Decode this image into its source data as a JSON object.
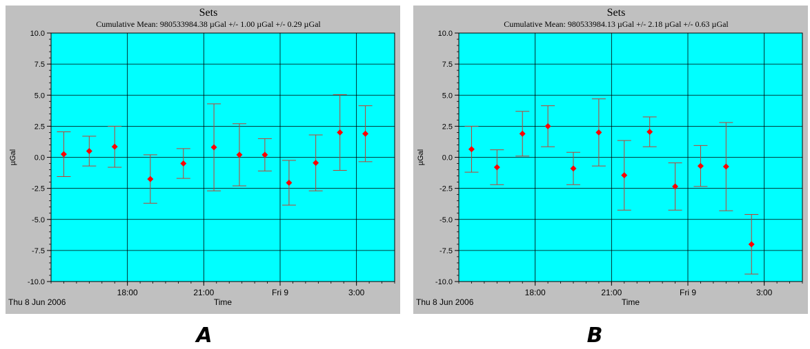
{
  "colors": {
    "frame": "#c0c0c0",
    "plot_bg": "#00ffff",
    "grid": "#000000",
    "marker": "#ff0000",
    "errorbar": "#c04030"
  },
  "chart_data": [
    {
      "type": "scatter",
      "panel_label": "A",
      "title": "Sets",
      "subtitle": "Cumulative Mean:  980533984.38 µGal   +/- 1.00 µGal   +/-  0.29 µGal",
      "xlabel": "Time",
      "ylabel": "µGal",
      "date_label": "Thu 8 Jun 2006",
      "xlim": [
        15.0,
        28.5
      ],
      "ylim": [
        -10,
        10
      ],
      "yticks": [
        "10.0",
        "7.5",
        "5.0",
        "2.5",
        "0.0",
        "-2.5",
        "-5.0",
        "-7.5",
        "-10.0"
      ],
      "xticks": [
        {
          "x": 18,
          "label": "18:00"
        },
        {
          "x": 21,
          "label": "21:00"
        },
        {
          "x": 24,
          "label": "Fri 9"
        },
        {
          "x": 27,
          "label": "3:00"
        }
      ],
      "grid": true,
      "series": [
        {
          "points": [
            {
              "x": 15.5,
              "y": 0.25,
              "err": 1.8
            },
            {
              "x": 16.5,
              "y": 0.5,
              "err": 1.2
            },
            {
              "x": 17.5,
              "y": 0.85,
              "err": 1.65
            },
            {
              "x": 18.9,
              "y": -1.75,
              "err": 1.95
            },
            {
              "x": 20.2,
              "y": -0.5,
              "err": 1.2
            },
            {
              "x": 21.4,
              "y": 0.8,
              "err": 3.5
            },
            {
              "x": 22.4,
              "y": 0.2,
              "err": 2.5
            },
            {
              "x": 23.4,
              "y": 0.2,
              "err": 1.3
            },
            {
              "x": 24.35,
              "y": -2.05,
              "err": 1.8
            },
            {
              "x": 25.4,
              "y": -0.45,
              "err": 2.25
            },
            {
              "x": 26.35,
              "y": 2.0,
              "err": 3.05
            },
            {
              "x": 27.35,
              "y": 1.9,
              "err": 2.25
            }
          ]
        }
      ]
    },
    {
      "type": "scatter",
      "panel_label": "B",
      "title": "Sets",
      "subtitle": "Cumulative Mean:  980533984.13 µGal   +/- 2.18 µGal   +/-  0.63 µGal",
      "xlabel": "Time",
      "ylabel": "µGal",
      "date_label": "Thu 8 Jun 2006",
      "xlim": [
        15.0,
        28.5
      ],
      "ylim": [
        -10,
        10
      ],
      "yticks": [
        "10.0",
        "7.5",
        "5.0",
        "2.5",
        "0.0",
        "-2.5",
        "-5.0",
        "-7.5",
        "-10.0"
      ],
      "xticks": [
        {
          "x": 18,
          "label": "18:00"
        },
        {
          "x": 21,
          "label": "21:00"
        },
        {
          "x": 24,
          "label": "Fri 9"
        },
        {
          "x": 27,
          "label": "3:00"
        }
      ],
      "grid": true,
      "series": [
        {
          "points": [
            {
              "x": 15.5,
              "y": 0.65,
              "err": 1.85
            },
            {
              "x": 16.5,
              "y": -0.8,
              "err": 1.4
            },
            {
              "x": 17.5,
              "y": 1.9,
              "err": 1.8
            },
            {
              "x": 18.5,
              "y": 2.5,
              "err": 1.65
            },
            {
              "x": 19.5,
              "y": -0.9,
              "err": 1.3
            },
            {
              "x": 20.5,
              "y": 2.0,
              "err": 2.7
            },
            {
              "x": 21.5,
              "y": -1.45,
              "err": 2.8
            },
            {
              "x": 22.5,
              "y": 2.05,
              "err": 1.2
            },
            {
              "x": 23.5,
              "y": -2.35,
              "err": 1.9
            },
            {
              "x": 24.5,
              "y": -0.7,
              "err": 1.65
            },
            {
              "x": 25.5,
              "y": -0.75,
              "err": 3.55
            },
            {
              "x": 26.5,
              "y": -7.0,
              "err": 2.4
            }
          ]
        }
      ]
    }
  ]
}
